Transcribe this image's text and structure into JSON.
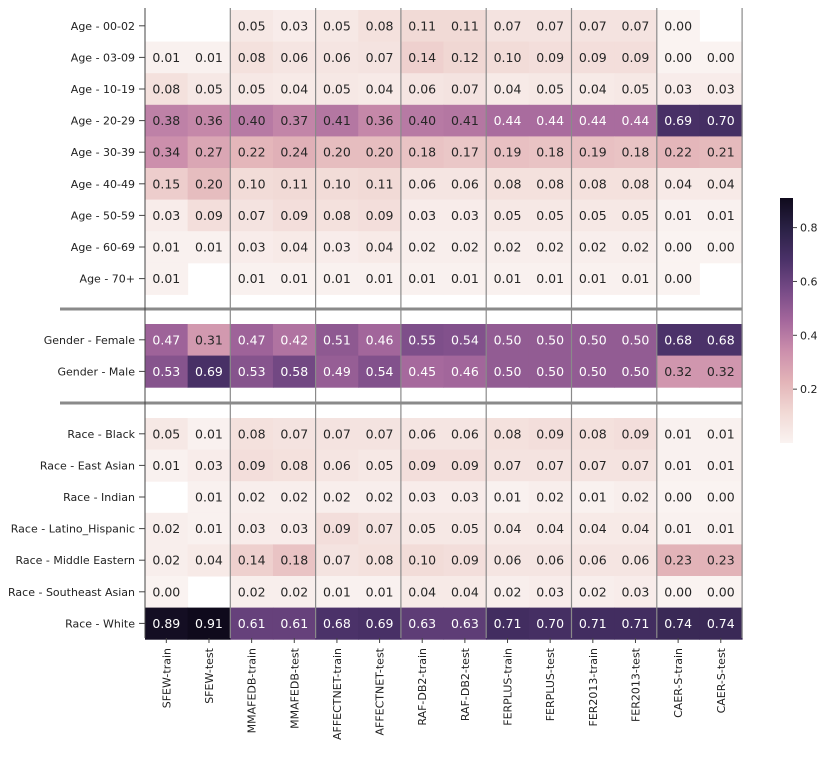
{
  "chart_data": {
    "type": "heatmap",
    "title": "",
    "columns": [
      "SFEW-train",
      "SFEW-test",
      "MMAFEDB-train",
      "MMAFEDB-test",
      "AFFECTNET-train",
      "AFFECTNET-test",
      "RAF-DB2-train",
      "RAF-DB2-test",
      "FERPLUS-train",
      "FERPLUS-test",
      "FER2013-train",
      "FER2013-test",
      "CAER-S-train",
      "CAER-S-test"
    ],
    "groups": [
      {
        "name": "Age",
        "rows": [
          {
            "label": "Age - 00-02",
            "values": [
              null,
              null,
              0.05,
              0.03,
              0.05,
              0.08,
              0.11,
              0.11,
              0.07,
              0.07,
              0.07,
              0.07,
              0.0,
              null
            ]
          },
          {
            "label": "Age - 03-09",
            "values": [
              0.01,
              0.01,
              0.08,
              0.06,
              0.06,
              0.07,
              0.14,
              0.12,
              0.1,
              0.09,
              0.09,
              0.09,
              0.0,
              0.0
            ]
          },
          {
            "label": "Age - 10-19",
            "values": [
              0.08,
              0.05,
              0.05,
              0.04,
              0.05,
              0.04,
              0.06,
              0.07,
              0.04,
              0.05,
              0.04,
              0.05,
              0.03,
              0.03
            ]
          },
          {
            "label": "Age - 20-29",
            "values": [
              0.38,
              0.36,
              0.4,
              0.37,
              0.41,
              0.36,
              0.4,
              0.41,
              0.44,
              0.44,
              0.44,
              0.44,
              0.69,
              0.7
            ]
          },
          {
            "label": "Age - 30-39",
            "values": [
              0.34,
              0.27,
              0.22,
              0.24,
              0.2,
              0.2,
              0.18,
              0.17,
              0.19,
              0.18,
              0.19,
              0.18,
              0.22,
              0.21
            ]
          },
          {
            "label": "Age - 40-49",
            "values": [
              0.15,
              0.2,
              0.1,
              0.11,
              0.1,
              0.11,
              0.06,
              0.06,
              0.08,
              0.08,
              0.08,
              0.08,
              0.04,
              0.04
            ]
          },
          {
            "label": "Age - 50-59",
            "values": [
              0.03,
              0.09,
              0.07,
              0.09,
              0.08,
              0.09,
              0.03,
              0.03,
              0.05,
              0.05,
              0.05,
              0.05,
              0.01,
              0.01
            ]
          },
          {
            "label": "Age - 60-69",
            "values": [
              0.01,
              0.01,
              0.03,
              0.04,
              0.03,
              0.04,
              0.02,
              0.02,
              0.02,
              0.02,
              0.02,
              0.02,
              0.0,
              0.0
            ]
          },
          {
            "label": "Age - 70+",
            "values": [
              0.01,
              null,
              0.01,
              0.01,
              0.01,
              0.01,
              0.01,
              0.01,
              0.01,
              0.01,
              0.01,
              0.01,
              0.0,
              null
            ]
          }
        ]
      },
      {
        "name": "Gender",
        "rows": [
          {
            "label": "Gender - Female",
            "values": [
              0.47,
              0.31,
              0.47,
              0.42,
              0.51,
              0.46,
              0.55,
              0.54,
              0.5,
              0.5,
              0.5,
              0.5,
              0.68,
              0.68
            ]
          },
          {
            "label": "Gender - Male",
            "values": [
              0.53,
              0.69,
              0.53,
              0.58,
              0.49,
              0.54,
              0.45,
              0.46,
              0.5,
              0.5,
              0.5,
              0.5,
              0.32,
              0.32
            ]
          }
        ]
      },
      {
        "name": "Race",
        "rows": [
          {
            "label": "Race - Black",
            "values": [
              0.05,
              0.01,
              0.08,
              0.07,
              0.07,
              0.07,
              0.06,
              0.06,
              0.08,
              0.09,
              0.08,
              0.09,
              0.01,
              0.01
            ]
          },
          {
            "label": "Race - East Asian",
            "values": [
              0.01,
              0.03,
              0.09,
              0.08,
              0.06,
              0.05,
              0.09,
              0.09,
              0.07,
              0.07,
              0.07,
              0.07,
              0.01,
              0.01
            ]
          },
          {
            "label": "Race - Indian",
            "values": [
              null,
              0.01,
              0.02,
              0.02,
              0.02,
              0.02,
              0.03,
              0.03,
              0.01,
              0.02,
              0.01,
              0.02,
              0.0,
              0.0
            ]
          },
          {
            "label": "Race - Latino_Hispanic",
            "values": [
              0.02,
              0.01,
              0.03,
              0.03,
              0.09,
              0.07,
              0.05,
              0.05,
              0.04,
              0.04,
              0.04,
              0.04,
              0.01,
              0.01
            ]
          },
          {
            "label": "Race - Middle Eastern",
            "values": [
              0.02,
              0.04,
              0.14,
              0.18,
              0.07,
              0.08,
              0.1,
              0.09,
              0.06,
              0.06,
              0.06,
              0.06,
              0.23,
              0.23
            ]
          },
          {
            "label": "Race - Southeast Asian",
            "values": [
              0.0,
              null,
              0.02,
              0.02,
              0.01,
              0.01,
              0.04,
              0.04,
              0.02,
              0.03,
              0.02,
              0.03,
              0.0,
              0.0
            ]
          },
          {
            "label": "Race - White",
            "values": [
              0.89,
              0.91,
              0.61,
              0.61,
              0.68,
              0.69,
              0.63,
              0.63,
              0.71,
              0.7,
              0.71,
              0.71,
              0.74,
              0.74
            ]
          }
        ]
      }
    ],
    "value_range": [
      0,
      0.91
    ],
    "colorbar": {
      "ticks": [
        0.2,
        0.4,
        0.6,
        0.8
      ],
      "tick_labels": [
        "0.2",
        "0.4",
        "0.6",
        "0.8"
      ],
      "colormap": [
        "#faf3f1",
        "#f1d9d5",
        "#e3b4b8",
        "#cc8fac",
        "#a4679c",
        "#764a86",
        "#4a3168",
        "#2a2145",
        "#0f0a1c"
      ]
    }
  }
}
